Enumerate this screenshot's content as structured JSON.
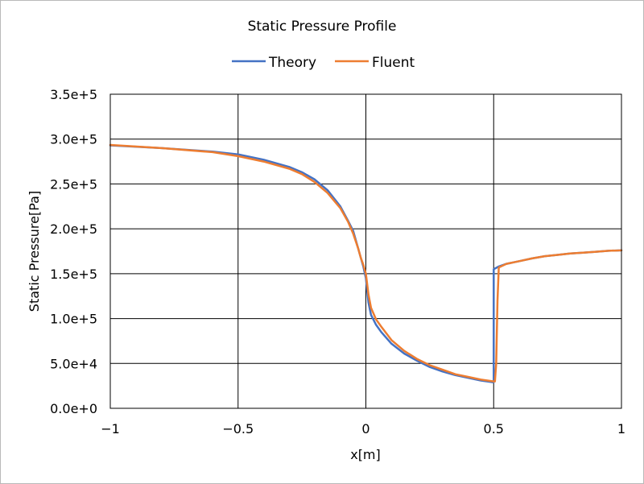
{
  "chart_data": {
    "type": "line",
    "title": "Static Pressure Profile",
    "xlabel": "x[m]",
    "ylabel": "Static Pressure[Pa]",
    "xlim": [
      -1,
      1
    ],
    "ylim": [
      0,
      350000
    ],
    "x_ticks": [
      -1,
      -0.5,
      0,
      0.5,
      1
    ],
    "x_tick_labels": [
      "−1",
      "−0.5",
      "0",
      "0.5",
      "1"
    ],
    "y_ticks": [
      0,
      50000,
      100000,
      150000,
      200000,
      250000,
      300000,
      350000
    ],
    "y_tick_labels": [
      "0.0e+0",
      "5.0e+4",
      "1.0e+5",
      "1.5e+5",
      "2.0e+5",
      "2.5e+5",
      "3.0e+5",
      "3.5e+5"
    ],
    "grid": true,
    "legend_position": "top-center",
    "series": [
      {
        "name": "Theory",
        "color": "#4472C4",
        "x": [
          -1.0,
          -0.8,
          -0.6,
          -0.5,
          -0.4,
          -0.3,
          -0.25,
          -0.2,
          -0.15,
          -0.1,
          -0.07,
          -0.05,
          -0.03,
          -0.02,
          -0.01,
          0.0,
          0.01,
          0.02,
          0.04,
          0.06,
          0.1,
          0.15,
          0.2,
          0.25,
          0.3,
          0.35,
          0.4,
          0.45,
          0.5,
          0.5,
          0.52,
          0.55,
          0.6,
          0.65,
          0.7,
          0.75,
          0.8,
          0.85,
          0.9,
          0.95,
          1.0
        ],
        "y": [
          293000,
          290000,
          286000,
          283000,
          277000,
          269000,
          263000,
          255000,
          243000,
          225000,
          209000,
          198000,
          178000,
          168000,
          158000,
          145000,
          118000,
          104000,
          93000,
          85000,
          72000,
          61000,
          53000,
          46000,
          41000,
          37000,
          34000,
          31000,
          29000,
          155000,
          158000,
          161000,
          164000,
          167000,
          169500,
          171000,
          172500,
          173500,
          174500,
          175500,
          176000
        ]
      },
      {
        "name": "Fluent",
        "color": "#ED7D31",
        "x": [
          -1.0,
          -0.8,
          -0.6,
          -0.5,
          -0.4,
          -0.3,
          -0.25,
          -0.2,
          -0.15,
          -0.1,
          -0.07,
          -0.05,
          -0.03,
          -0.02,
          -0.01,
          0.0,
          0.01,
          0.02,
          0.04,
          0.06,
          0.1,
          0.15,
          0.2,
          0.25,
          0.3,
          0.35,
          0.4,
          0.45,
          0.5,
          0.505,
          0.51,
          0.515,
          0.52,
          0.55,
          0.6,
          0.65,
          0.7,
          0.75,
          0.8,
          0.85,
          0.9,
          0.95,
          1.0
        ],
        "y": [
          293500,
          290000,
          285500,
          281000,
          275000,
          267000,
          261000,
          252000,
          240000,
          223000,
          208000,
          195000,
          178000,
          168000,
          160000,
          150000,
          127000,
          112000,
          99000,
          91000,
          76000,
          64000,
          55000,
          48000,
          43000,
          38000,
          35000,
          32000,
          30000,
          30000,
          50000,
          120000,
          157000,
          161000,
          164000,
          167000,
          169500,
          171000,
          172500,
          173500,
          174500,
          175500,
          176000
        ]
      }
    ]
  }
}
